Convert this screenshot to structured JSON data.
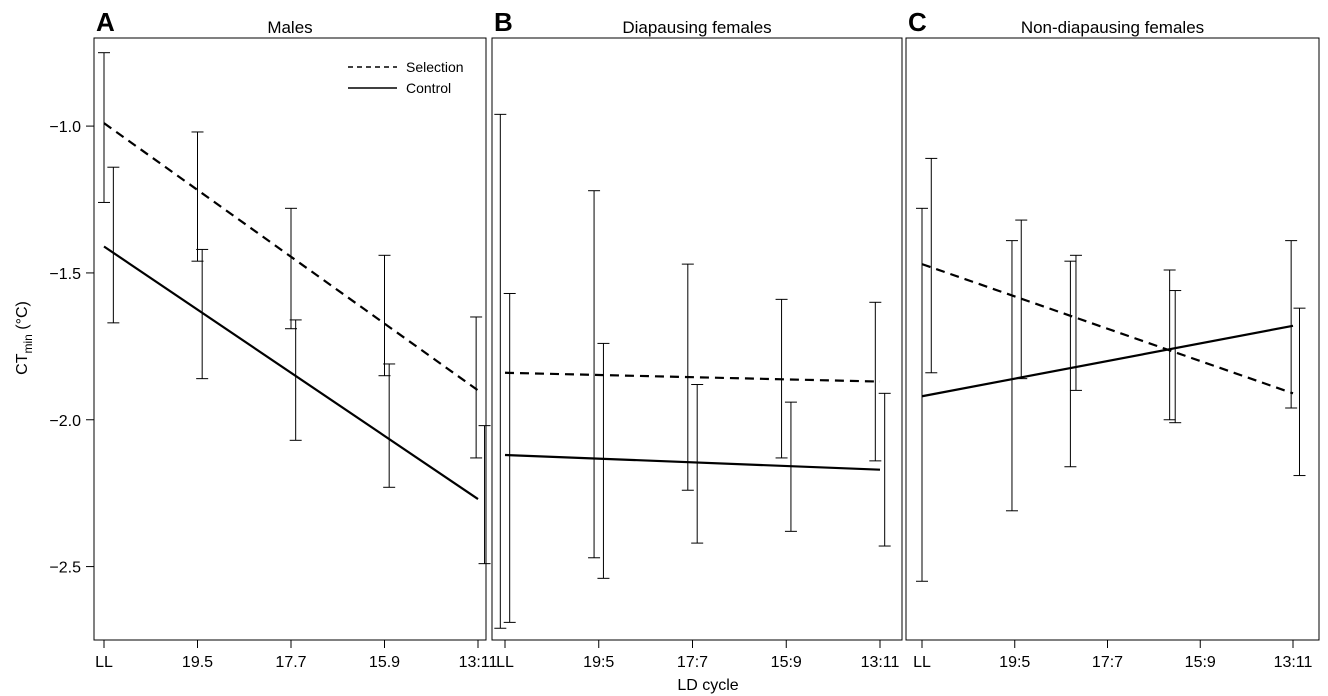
{
  "chart_data": {
    "type": "line",
    "xlabel": "LD cycle",
    "ylabel_main": "CT",
    "ylabel_sub": "min",
    "ylabel_unit": " (°C)",
    "ylim": [
      -2.75,
      -0.7
    ],
    "yticks": [
      -1.0,
      -1.5,
      -2.0,
      -2.5
    ],
    "ytick_labels": [
      "−1.0",
      "−1.5",
      "−2.0",
      "−2.5"
    ],
    "grid": false,
    "legend": {
      "placement": "top-right of panel A",
      "entries": [
        {
          "label": "Selection",
          "style": "dashed"
        },
        {
          "label": "Control",
          "style": "solid"
        }
      ]
    },
    "panels": [
      {
        "letter": "A",
        "title": "Males",
        "xticks": [
          "LL",
          "19.5",
          "17.7",
          "15.9",
          "13:11"
        ],
        "series": [
          {
            "name": "Selection",
            "style": "dashed",
            "line": [
              -0.99,
              -1.9
            ]
          },
          {
            "name": "Control",
            "style": "solid",
            "line": [
              -1.41,
              -2.27
            ]
          }
        ],
        "error_bars": [
          {
            "x": 0,
            "lo": -1.26,
            "hi": -0.75
          },
          {
            "x": 0.1,
            "lo": -1.67,
            "hi": -1.14
          },
          {
            "x": 1,
            "lo": -1.46,
            "hi": -1.02
          },
          {
            "x": 1.05,
            "lo": -1.86,
            "hi": -1.42
          },
          {
            "x": 2,
            "lo": -1.69,
            "hi": -1.28
          },
          {
            "x": 2.05,
            "lo": -2.07,
            "hi": -1.66
          },
          {
            "x": 3,
            "lo": -1.85,
            "hi": -1.44
          },
          {
            "x": 3.05,
            "lo": -2.23,
            "hi": -1.81
          },
          {
            "x": 3.98,
            "lo": -2.13,
            "hi": -1.65
          },
          {
            "x": 4.07,
            "lo": -2.49,
            "hi": -2.02
          }
        ]
      },
      {
        "letter": "B",
        "title": "Diapausing females",
        "xticks": [
          "LL",
          "19:5",
          "17:7",
          "15:9",
          "13:11"
        ],
        "series": [
          {
            "name": "Selection",
            "style": "dashed",
            "line": [
              -1.84,
              -1.87
            ]
          },
          {
            "name": "Control",
            "style": "solid",
            "line": [
              -2.12,
              -2.17
            ]
          }
        ],
        "error_bars": [
          {
            "x": -0.05,
            "lo": -2.71,
            "hi": -0.96
          },
          {
            "x": 0.05,
            "lo": -2.69,
            "hi": -1.57
          },
          {
            "x": 0.95,
            "lo": -2.47,
            "hi": -1.22
          },
          {
            "x": 1.05,
            "lo": -2.54,
            "hi": -1.74
          },
          {
            "x": 1.95,
            "lo": -2.24,
            "hi": -1.47
          },
          {
            "x": 2.05,
            "lo": -2.42,
            "hi": -1.88
          },
          {
            "x": 2.95,
            "lo": -2.13,
            "hi": -1.59
          },
          {
            "x": 3.05,
            "lo": -2.38,
            "hi": -1.94
          },
          {
            "x": 3.95,
            "lo": -2.14,
            "hi": -1.6
          },
          {
            "x": 4.05,
            "lo": -2.43,
            "hi": -1.91
          }
        ]
      },
      {
        "letter": "C",
        "title": "Non-diapausing females",
        "xticks": [
          "LL",
          "19:5",
          "17:7",
          "15:9",
          "13:11"
        ],
        "series": [
          {
            "name": "Selection",
            "style": "dashed",
            "line": [
              -1.47,
              -1.91
            ]
          },
          {
            "name": "Control",
            "style": "solid",
            "line": [
              -1.92,
              -1.68
            ]
          }
        ],
        "error_bars": [
          {
            "x": 0,
            "lo": -2.55,
            "hi": -1.28
          },
          {
            "x": 0.1,
            "lo": -1.84,
            "hi": -1.11
          },
          {
            "x": 0.97,
            "lo": -2.31,
            "hi": -1.39
          },
          {
            "x": 1.07,
            "lo": -1.86,
            "hi": -1.32
          },
          {
            "x": 1.6,
            "lo": -2.16,
            "hi": -1.46
          },
          {
            "x": 1.66,
            "lo": -1.9,
            "hi": -1.44
          },
          {
            "x": 2.67,
            "lo": -2.0,
            "hi": -1.49
          },
          {
            "x": 2.73,
            "lo": -2.01,
            "hi": -1.56
          },
          {
            "x": 3.98,
            "lo": -1.96,
            "hi": -1.39
          },
          {
            "x": 4.07,
            "lo": -2.19,
            "hi": -1.62
          }
        ]
      }
    ]
  }
}
